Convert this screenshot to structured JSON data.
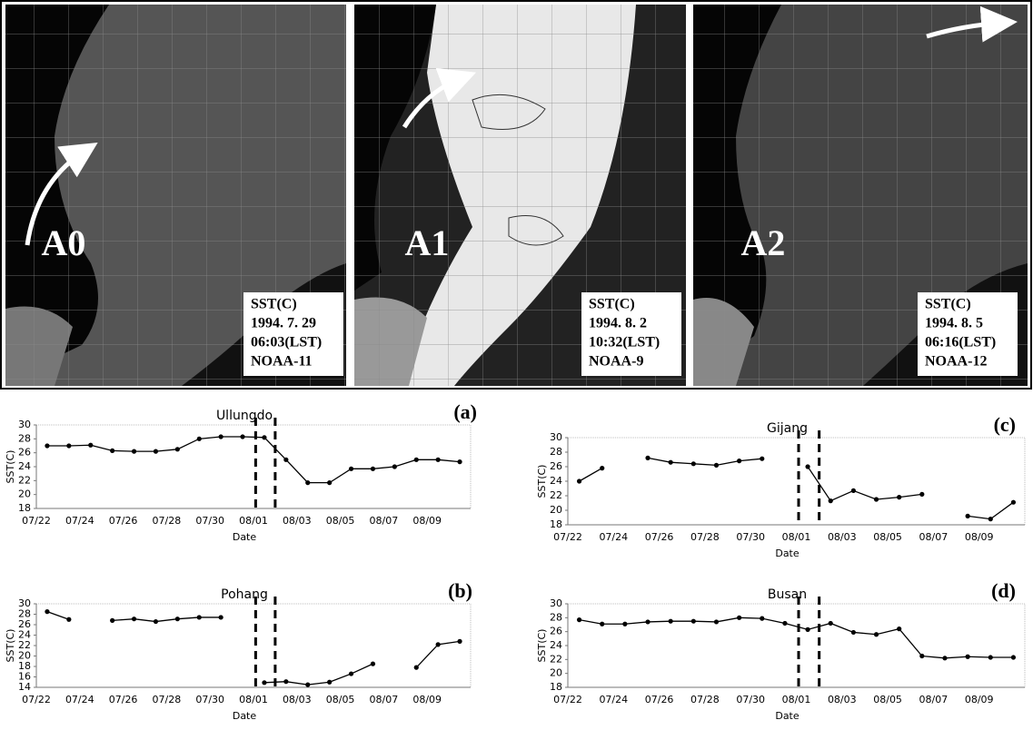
{
  "panels": [
    {
      "label": "A0",
      "info": [
        "SST(C)",
        "1994. 7. 29",
        "06:03(LST)",
        "NOAA-11"
      ]
    },
    {
      "label": "A1",
      "info": [
        "SST(C)",
        "1994. 8. 2",
        "10:32(LST)",
        "NOAA-9"
      ]
    },
    {
      "label": "A2",
      "info": [
        "SST(C)",
        "1994. 8. 5",
        "06:16(LST)",
        "NOAA-12"
      ]
    }
  ],
  "chart_data": [
    {
      "type": "line",
      "title": "Ullungdo",
      "panel_label": "(a)",
      "ylabel": "SST(C)",
      "xlabel": "Date",
      "categories": [
        "07/22",
        null,
        "07/24",
        null,
        "07/26",
        null,
        "07/28",
        null,
        "07/30",
        null,
        "08/01",
        null,
        "08/03",
        null,
        "08/05",
        null,
        "08/07",
        null,
        "08/09",
        null
      ],
      "ylim": [
        18,
        30
      ],
      "yticks": [
        18,
        20,
        22,
        24,
        26,
        28,
        30
      ],
      "series": [
        {
          "color": "#000000",
          "values": [
            27,
            27,
            27.1,
            26.3,
            26.2,
            26.2,
            26.5,
            28,
            28.3,
            28.3,
            28.2,
            25,
            21.7,
            21.7,
            23.7,
            23.7,
            24,
            25,
            25,
            24.7
          ]
        }
      ]
    },
    {
      "type": "line",
      "title": "Pohang",
      "panel_label": "(b)",
      "ylabel": "SST(C)",
      "xlabel": "Date",
      "categories": [
        "07/22",
        null,
        "07/24",
        null,
        "07/26",
        null,
        "07/28",
        null,
        "07/30",
        null,
        "08/01",
        null,
        "08/03",
        null,
        "08/05",
        null,
        "08/07",
        null,
        "08/09",
        null
      ],
      "ylim": [
        14,
        30
      ],
      "yticks": [
        14,
        16,
        18,
        20,
        22,
        24,
        26,
        28,
        30
      ],
      "series": [
        {
          "color": "#000000",
          "values": [
            28.5,
            27,
            null,
            26.8,
            27.1,
            26.6,
            27.1,
            27.4,
            27.4,
            null,
            14.9,
            15.1,
            14.5,
            15,
            16.6,
            18.5,
            null,
            17.8,
            22.2,
            22.8
          ]
        }
      ]
    },
    {
      "type": "line",
      "title": "Gijang",
      "panel_label": "(c)",
      "ylabel": "SST(C)",
      "xlabel": "Date",
      "categories": [
        "07/22",
        null,
        "07/24",
        null,
        "07/26",
        null,
        "07/28",
        null,
        "07/30",
        null,
        "08/01",
        null,
        "08/03",
        null,
        "08/05",
        null,
        "08/07",
        null,
        "08/09",
        null
      ],
      "ylim": [
        18,
        30
      ],
      "yticks": [
        18,
        20,
        22,
        24,
        26,
        28,
        30
      ],
      "series": [
        {
          "color": "#000000",
          "values": [
            24,
            25.8,
            null,
            27.2,
            26.6,
            26.4,
            26.2,
            26.8,
            27.1,
            null,
            26,
            21.3,
            22.7,
            21.5,
            21.8,
            22.2,
            null,
            19.2,
            18.8,
            21.1
          ]
        }
      ]
    },
    {
      "type": "line",
      "title": "Busan",
      "panel_label": "(d)",
      "ylabel": "SST(C)",
      "xlabel": "Date",
      "categories": [
        "07/22",
        null,
        "07/24",
        null,
        "07/26",
        null,
        "07/28",
        null,
        "07/30",
        null,
        "08/01",
        null,
        "08/03",
        null,
        "08/05",
        null,
        "08/07",
        null,
        "08/09",
        null
      ],
      "ylim": [
        18,
        30
      ],
      "yticks": [
        18,
        20,
        22,
        24,
        26,
        28,
        30
      ],
      "series": [
        {
          "color": "#000000",
          "values": [
            27.7,
            27.1,
            27.1,
            27.4,
            27.5,
            27.5,
            27.4,
            28,
            27.9,
            27.2,
            26.3,
            27.2,
            25.9,
            25.6,
            26.4,
            22.5,
            22.2,
            22.4,
            22.3,
            22.3
          ]
        }
      ]
    }
  ]
}
